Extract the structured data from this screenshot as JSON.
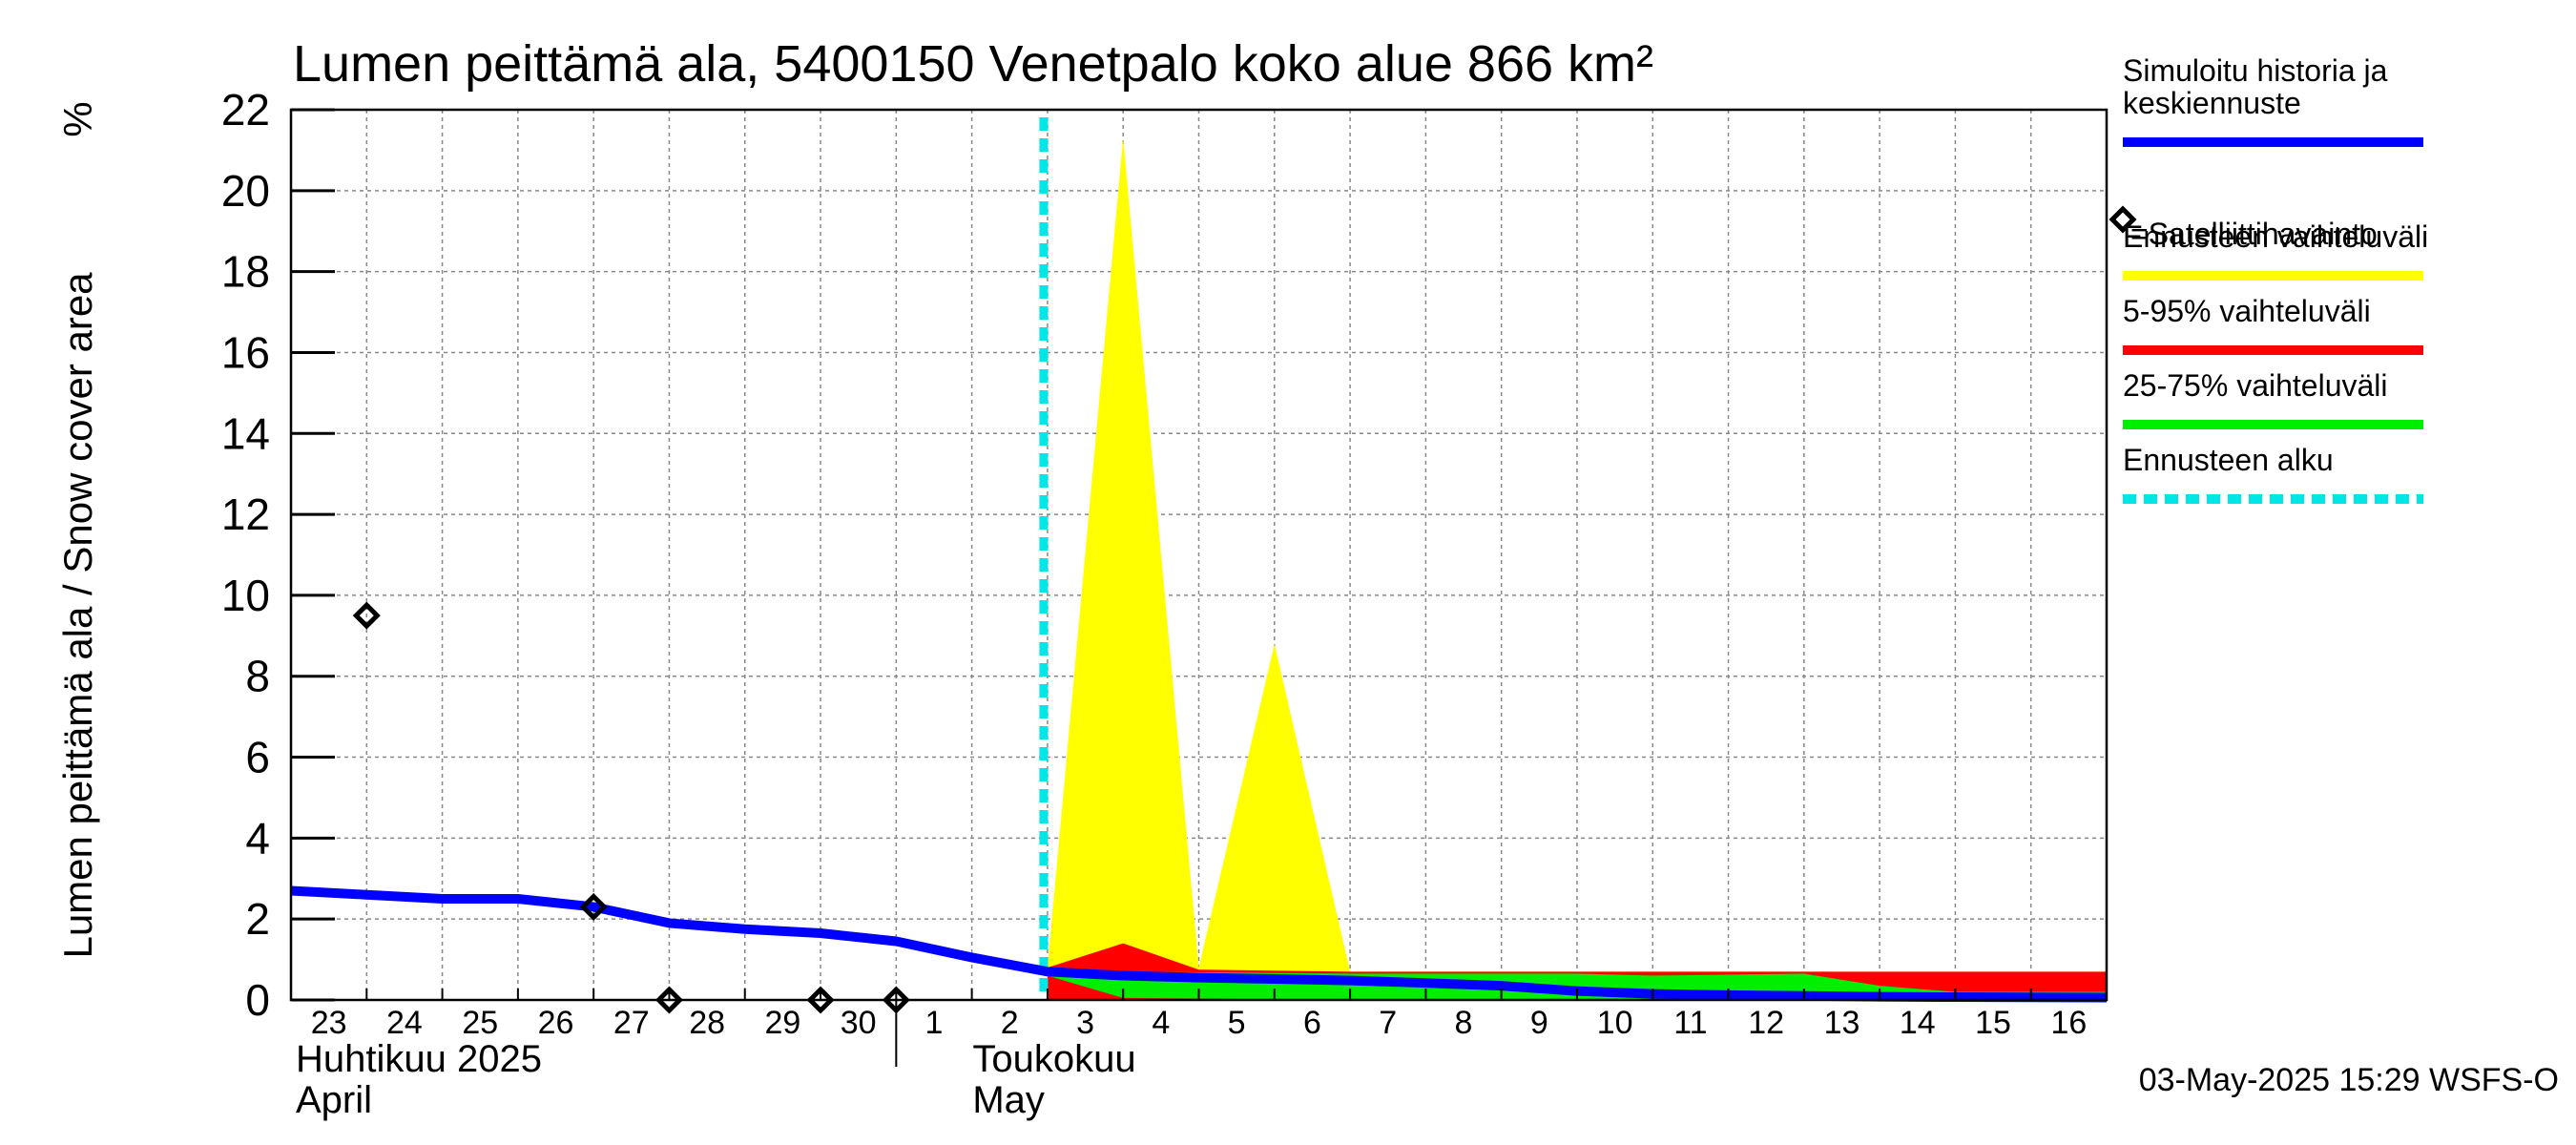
{
  "chart_data": {
    "type": "area",
    "title": "Lumen peittämä ala, 5400150 Venetpalo koko alue 866 km²",
    "ylabel": "Lumen peittämä ala / Snow cover area",
    "yunit": "%",
    "ylim": [
      0,
      22
    ],
    "yticks": [
      0,
      2,
      4,
      6,
      8,
      10,
      12,
      14,
      16,
      18,
      20,
      22
    ],
    "x_dates": [
      "2025-04-23",
      "2025-04-24",
      "2025-04-25",
      "2025-04-26",
      "2025-04-27",
      "2025-04-28",
      "2025-04-29",
      "2025-04-30",
      "2025-05-01",
      "2025-05-02",
      "2025-05-03",
      "2025-05-04",
      "2025-05-05",
      "2025-05-06",
      "2025-05-07",
      "2025-05-08",
      "2025-05-09",
      "2025-05-10",
      "2025-05-11",
      "2025-05-12",
      "2025-05-13",
      "2025-05-14",
      "2025-05-15",
      "2025-05-16",
      "2025-05-17"
    ],
    "x_tick_labels": [
      "23",
      "24",
      "25",
      "26",
      "27",
      "28",
      "29",
      "30",
      "1",
      "2",
      "3",
      "4",
      "5",
      "6",
      "7",
      "8",
      "9",
      "10",
      "11",
      "12",
      "13",
      "14",
      "15",
      "16"
    ],
    "month_labels": [
      {
        "fi": "Huhtikuu  2025",
        "en": "April"
      },
      {
        "fi": "Toukokuu",
        "en": "May"
      }
    ],
    "grid": true,
    "legend_position": "right",
    "forecast_start": "2025-05-03",
    "series": [
      {
        "name": "Ennusteen vaihteluväli",
        "color": "#ffff00",
        "kind": "band",
        "points": [
          {
            "x": "2025-05-03",
            "low": 0.0,
            "high": 0.8
          },
          {
            "x": "2025-05-04",
            "low": 0.0,
            "high": 21.3
          },
          {
            "x": "2025-05-05",
            "low": 0.0,
            "high": 0.8
          },
          {
            "x": "2025-05-06",
            "low": 0.0,
            "high": 8.8
          },
          {
            "x": "2025-05-07",
            "low": 0.0,
            "high": 0.7
          },
          {
            "x": "2025-05-17",
            "low": 0.0,
            "high": 0.7
          }
        ]
      },
      {
        "name": "5-95% vaihteluväli",
        "color": "#ff0000",
        "kind": "band",
        "points": [
          {
            "x": "2025-05-03",
            "low": 0.0,
            "high": 0.8
          },
          {
            "x": "2025-05-04",
            "low": 0.0,
            "high": 1.4
          },
          {
            "x": "2025-05-05",
            "low": 0.0,
            "high": 0.75
          },
          {
            "x": "2025-05-07",
            "low": 0.0,
            "high": 0.7
          },
          {
            "x": "2025-05-17",
            "low": 0.0,
            "high": 0.7
          }
        ]
      },
      {
        "name": "25-75% vaihteluväli",
        "color": "#00ee00",
        "kind": "band",
        "points": [
          {
            "x": "2025-05-03",
            "low": 0.6,
            "high": 0.75
          },
          {
            "x": "2025-05-04",
            "low": 0.05,
            "high": 0.7
          },
          {
            "x": "2025-05-07",
            "low": 0.0,
            "high": 0.65
          },
          {
            "x": "2025-05-10",
            "low": 0.0,
            "high": 0.65
          },
          {
            "x": "2025-05-11",
            "low": 0.0,
            "high": 0.6
          },
          {
            "x": "2025-05-13",
            "low": 0.0,
            "high": 0.65
          },
          {
            "x": "2025-05-14",
            "low": 0.0,
            "high": 0.35
          },
          {
            "x": "2025-05-15",
            "low": 0.0,
            "high": 0.2
          },
          {
            "x": "2025-05-17",
            "low": 0.0,
            "high": 0.2
          }
        ]
      },
      {
        "name": "Simuloitu historia ja keskiennuste",
        "color": "#0000ff",
        "kind": "line",
        "points": [
          {
            "x": "2025-04-23",
            "y": 2.7
          },
          {
            "x": "2025-04-24",
            "y": 2.6
          },
          {
            "x": "2025-04-25",
            "y": 2.5
          },
          {
            "x": "2025-04-26",
            "y": 2.5
          },
          {
            "x": "2025-04-27",
            "y": 2.3
          },
          {
            "x": "2025-04-28",
            "y": 1.9
          },
          {
            "x": "2025-04-29",
            "y": 1.75
          },
          {
            "x": "2025-04-30",
            "y": 1.65
          },
          {
            "x": "2025-05-01",
            "y": 1.45
          },
          {
            "x": "2025-05-02",
            "y": 1.05
          },
          {
            "x": "2025-05-03",
            "y": 0.7
          },
          {
            "x": "2025-05-04",
            "y": 0.6
          },
          {
            "x": "2025-05-05",
            "y": 0.55
          },
          {
            "x": "2025-05-06",
            "y": 0.52
          },
          {
            "x": "2025-05-07",
            "y": 0.48
          },
          {
            "x": "2025-05-08",
            "y": 0.42
          },
          {
            "x": "2025-05-09",
            "y": 0.35
          },
          {
            "x": "2025-05-10",
            "y": 0.22
          },
          {
            "x": "2025-05-11",
            "y": 0.15
          },
          {
            "x": "2025-05-12",
            "y": 0.12
          },
          {
            "x": "2025-05-13",
            "y": 0.1
          },
          {
            "x": "2025-05-14",
            "y": 0.08
          },
          {
            "x": "2025-05-15",
            "y": 0.07
          },
          {
            "x": "2025-05-17",
            "y": 0.06
          }
        ]
      },
      {
        "name": "=Satelliittihavainto",
        "color": "#000000",
        "kind": "markers",
        "points": [
          {
            "x": "2025-04-24",
            "y": 9.5
          },
          {
            "x": "2025-04-27",
            "y": 2.3
          },
          {
            "x": "2025-04-28",
            "y": 0.0
          },
          {
            "x": "2025-04-30",
            "y": 0.0
          },
          {
            "x": "2025-05-01",
            "y": 0.0
          }
        ]
      }
    ]
  },
  "legend": [
    {
      "label": "Simuloitu historia ja\nkeskiennuste",
      "color": "#0000ff",
      "style": "line"
    },
    {
      "label": "=Satelliittihavainto",
      "color": "#000000",
      "style": "diamond"
    },
    {
      "label": "Ennusteen vaihteluväli",
      "color": "#ffff00",
      "style": "line"
    },
    {
      "label": "5-95% vaihteluväli",
      "color": "#ff0000",
      "style": "line"
    },
    {
      "label": "25-75% vaihteluväli",
      "color": "#00ee00",
      "style": "line"
    },
    {
      "label": "Ennusteen alku",
      "color": "#00e5e5",
      "style": "dashed"
    }
  ],
  "footer": "03-May-2025 15:29 WSFS-O"
}
